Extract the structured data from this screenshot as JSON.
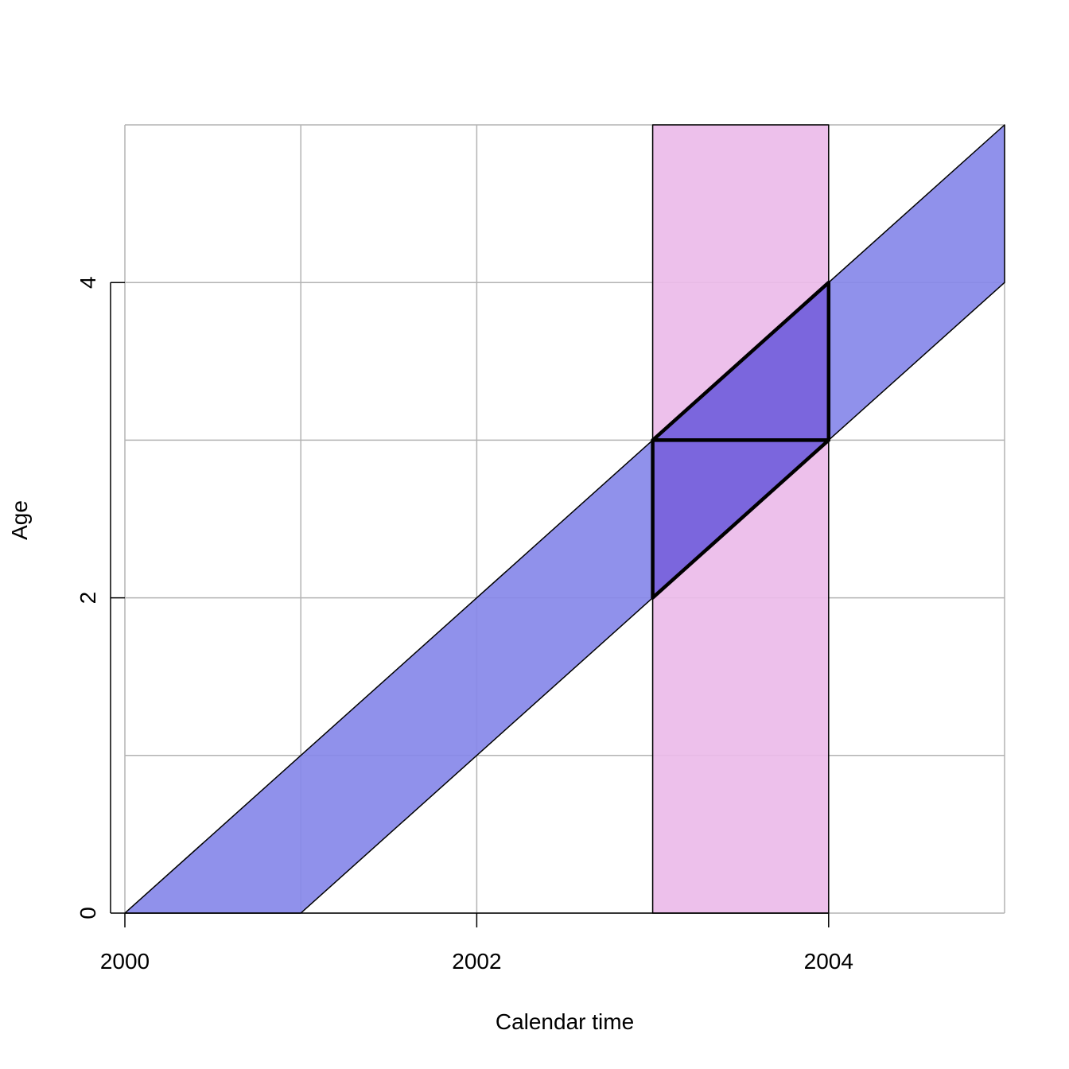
{
  "chart_data": {
    "type": "area",
    "title": "",
    "xlabel": "Calendar time",
    "ylabel": "Age",
    "xlim": [
      2000,
      2005
    ],
    "ylim": [
      0,
      5
    ],
    "x_ticks": [
      2000,
      2002,
      2004
    ],
    "x_tick_labels": [
      "2000",
      "2002",
      "2004"
    ],
    "y_ticks": [
      0,
      2,
      4
    ],
    "y_tick_labels": [
      "0",
      "2",
      "4"
    ],
    "grid": true,
    "grid_x": [
      2000,
      2001,
      2002,
      2003,
      2004,
      2005
    ],
    "grid_y": [
      0,
      1,
      2,
      3,
      4,
      5
    ],
    "regions": [
      {
        "id": "period-band",
        "fill": "#ebbbe9",
        "stroke": "#000000",
        "points": [
          [
            2003,
            0
          ],
          [
            2004,
            0
          ],
          [
            2004,
            5
          ],
          [
            2003,
            5
          ]
        ]
      },
      {
        "id": "cohort-band",
        "fill": "#8788e9",
        "stroke": "#000000",
        "points": [
          [
            2000,
            0
          ],
          [
            2001,
            0
          ],
          [
            2005,
            4
          ],
          [
            2005,
            5
          ]
        ]
      },
      {
        "id": "lexis-upper-triangle",
        "fill": "#7b66dd",
        "stroke": "#000000",
        "bold": true,
        "points": [
          [
            2003,
            3
          ],
          [
            2004,
            4
          ],
          [
            2004,
            3
          ]
        ]
      },
      {
        "id": "lexis-lower-triangle",
        "fill": "#7b66dd",
        "stroke": "#000000",
        "bold": true,
        "points": [
          [
            2003,
            2
          ],
          [
            2004,
            3
          ],
          [
            2003,
            3
          ]
        ]
      }
    ],
    "colors": {
      "grid": "#b3b3b3",
      "period": "#ebbbe9",
      "cohort": "#8788e9",
      "overlap": "#7b66dd",
      "outline": "#000000"
    }
  }
}
